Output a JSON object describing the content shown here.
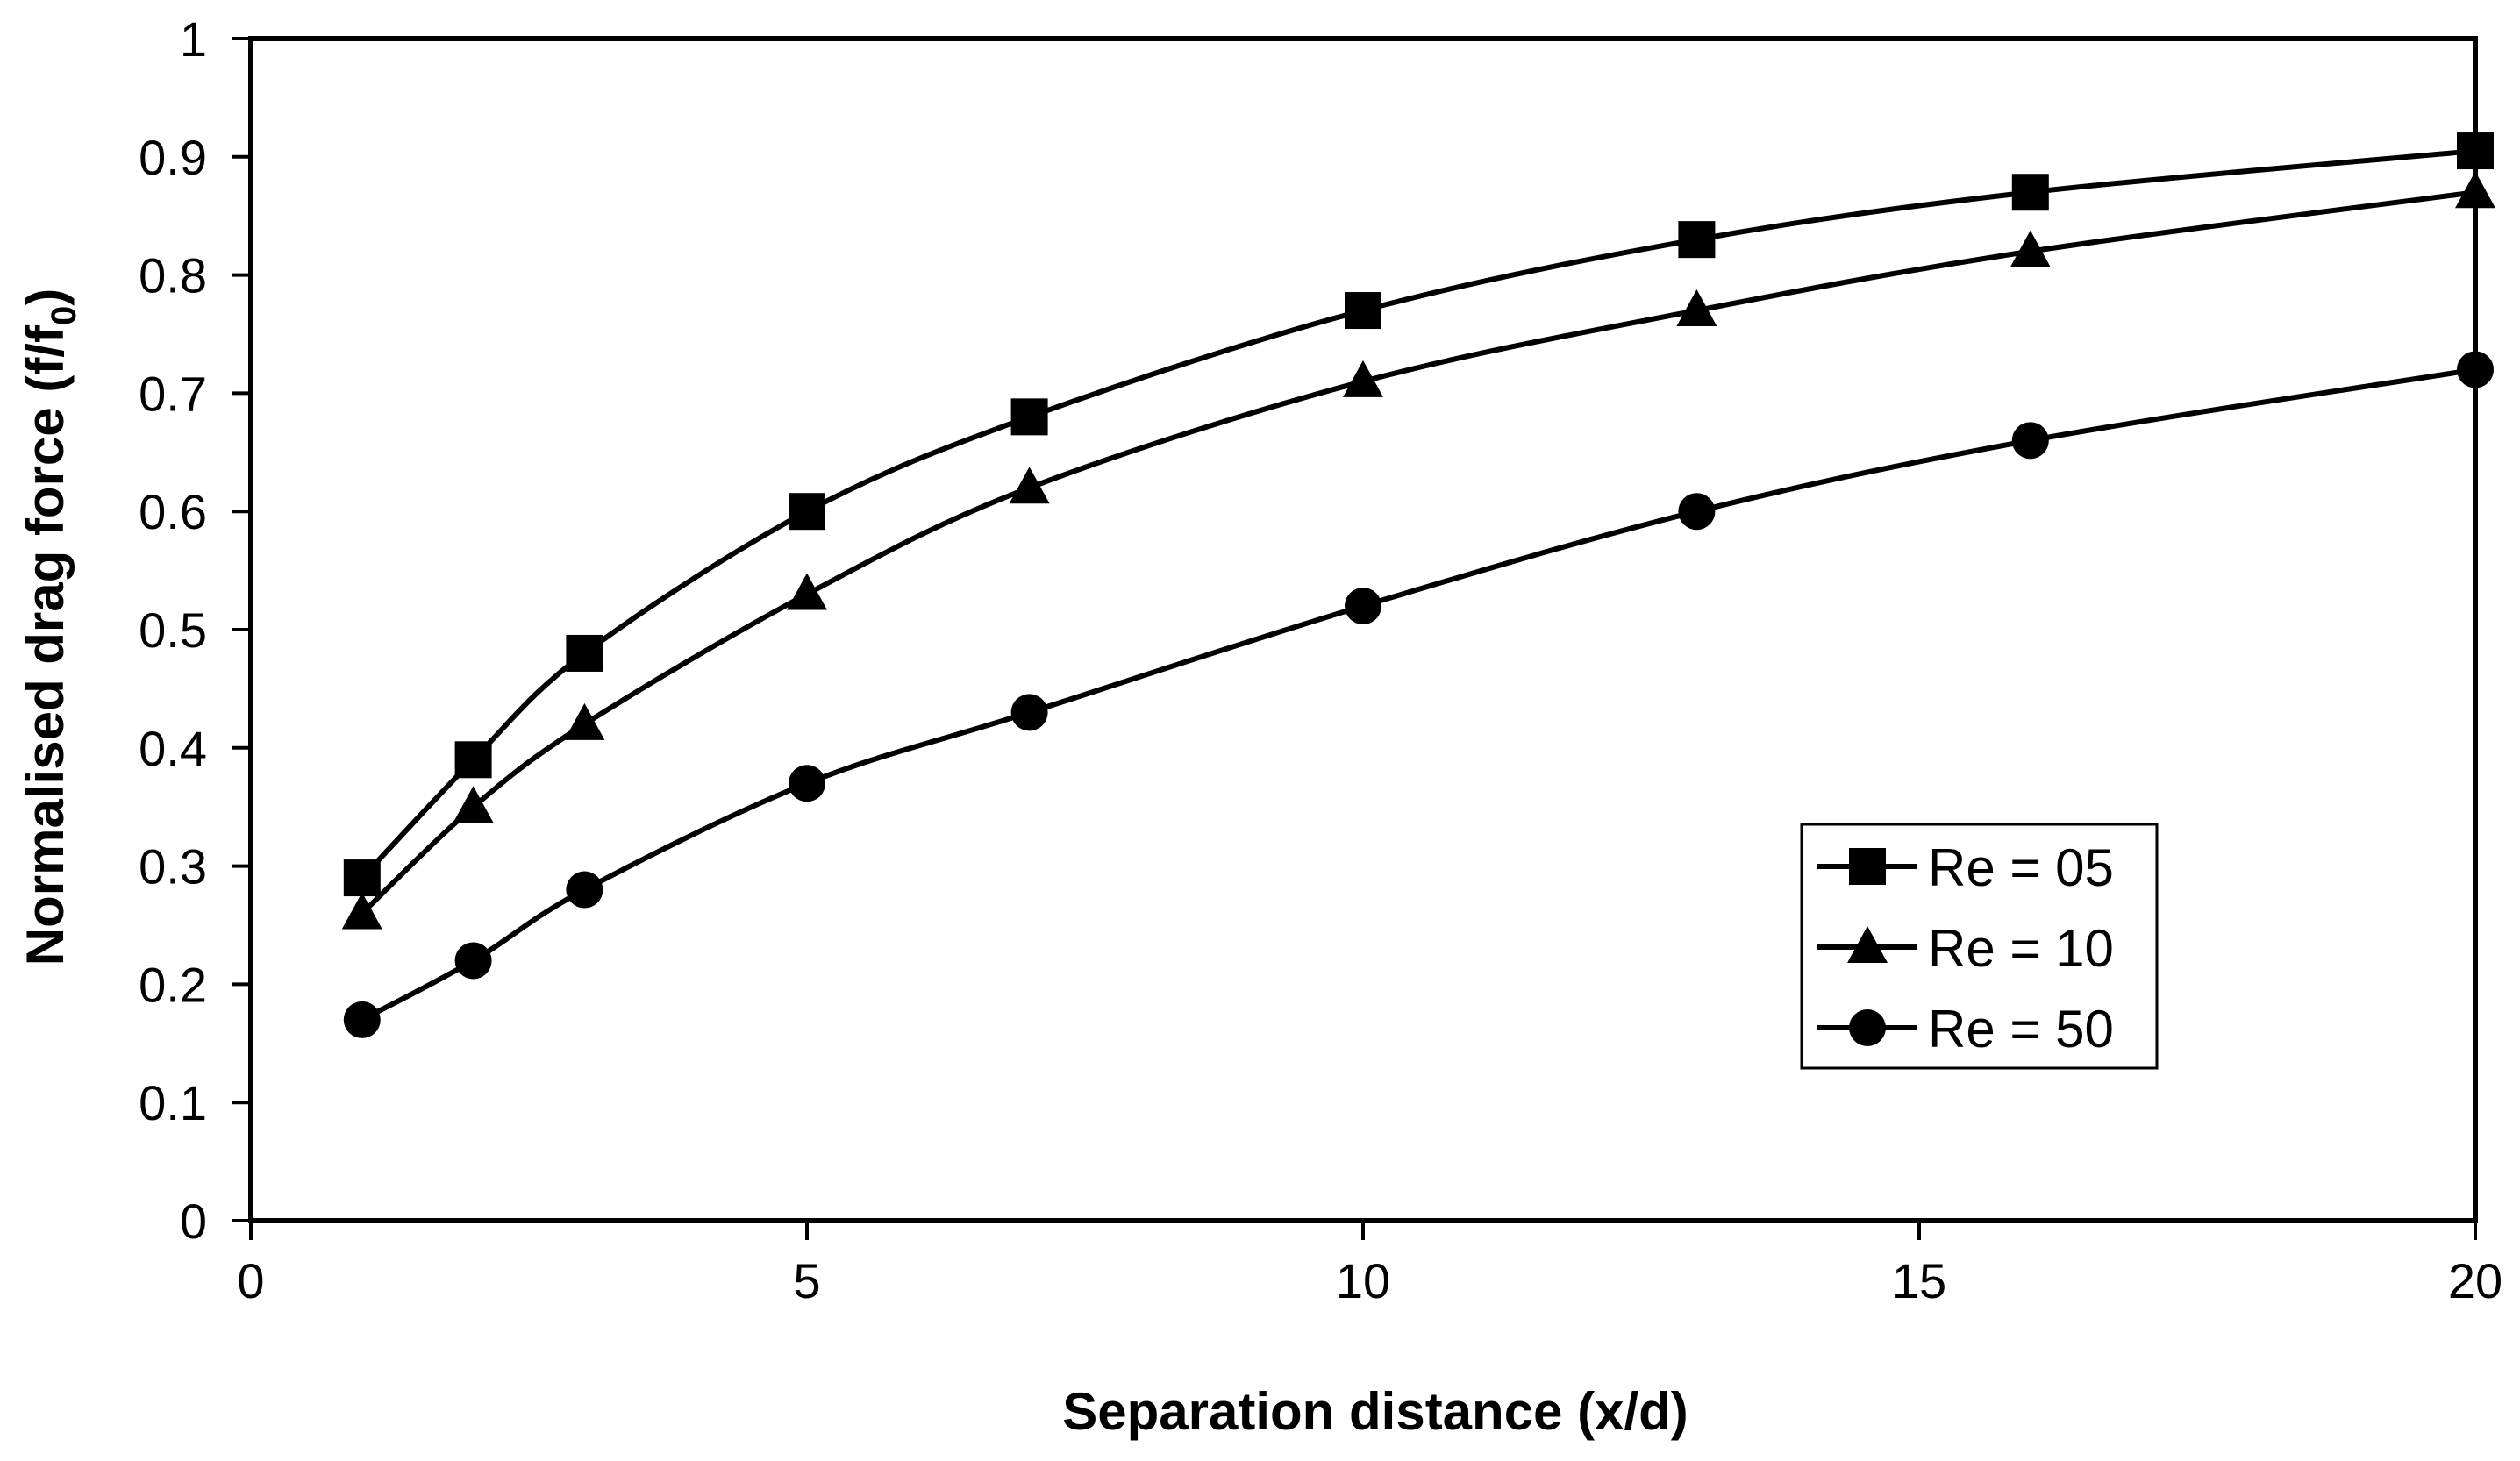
{
  "chart_data": {
    "type": "line",
    "title": "",
    "xlabel": "Separation distance (x/d)",
    "ylabel_main": "Normalised drag force (f/f",
    "ylabel_sub": "0",
    "ylabel_close": ")",
    "xlim": [
      0,
      20
    ],
    "ylim": [
      0,
      1
    ],
    "xticks": [
      0,
      5,
      10,
      15,
      20
    ],
    "yticks": [
      0,
      0.1,
      0.2,
      0.3,
      0.4,
      0.5,
      0.6,
      0.7,
      0.8,
      0.9,
      1
    ],
    "grid": false,
    "legend_position": "bottom-right",
    "x": [
      1,
      2,
      3,
      5,
      7,
      10,
      13,
      16,
      20
    ],
    "series": [
      {
        "name": "Re = 05",
        "marker": "square",
        "values": [
          0.29,
          0.39,
          0.48,
          0.6,
          0.68,
          0.77,
          0.83,
          0.87,
          0.905
        ]
      },
      {
        "name": "Re = 10",
        "marker": "triangle",
        "values": [
          0.26,
          0.35,
          0.42,
          0.53,
          0.62,
          0.71,
          0.77,
          0.82,
          0.87
        ]
      },
      {
        "name": "Re = 50",
        "marker": "circle",
        "values": [
          0.17,
          0.22,
          0.28,
          0.37,
          0.43,
          0.52,
          0.6,
          0.66,
          0.72
        ]
      }
    ],
    "colors": {
      "line": "#000000",
      "background": "#ffffff"
    }
  }
}
